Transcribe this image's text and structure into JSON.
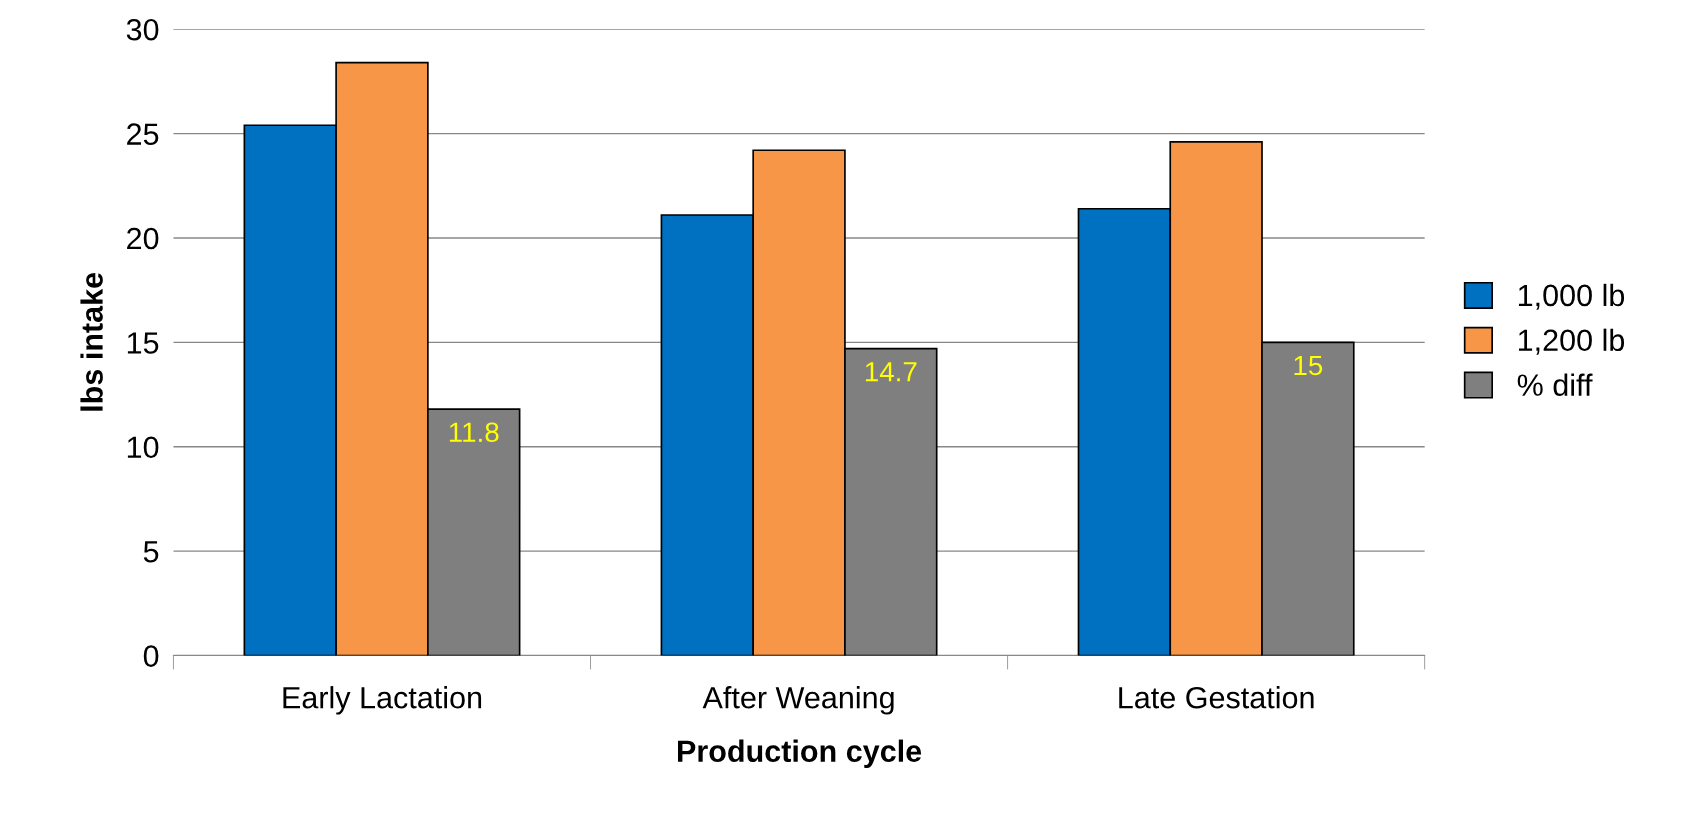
{
  "chart_data": {
    "type": "bar",
    "xlabel": "Production cycle",
    "ylabel": "lbs intake",
    "categories": [
      "Early Lactation",
      "After Weaning",
      "Late Gestation"
    ],
    "series": [
      {
        "name": "1,000 lb",
        "color": "#0070c0",
        "values": [
          25.4,
          21.1,
          21.4
        ]
      },
      {
        "name": "1,200 lb",
        "color": "#f79646",
        "values": [
          28.4,
          24.2,
          24.6
        ]
      },
      {
        "name": "% diff",
        "color": "#7f7f7f",
        "values": [
          11.8,
          14.7,
          15
        ],
        "value_labels": [
          "11.8",
          "14.7",
          "15"
        ]
      }
    ],
    "ylim": [
      0,
      30
    ],
    "yticks": [
      0,
      5,
      10,
      15,
      20,
      25,
      30
    ],
    "grid": "y",
    "legend": "right"
  }
}
